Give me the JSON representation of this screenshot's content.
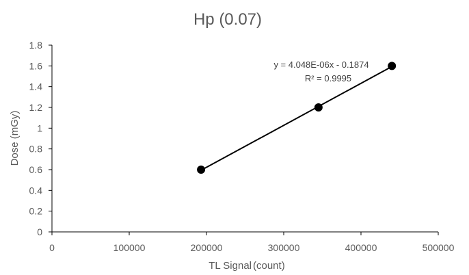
{
  "chart_data": {
    "type": "scatter",
    "title": "Hp (0.07)",
    "xlabel": "TL Signal",
    "xlabel_unit": "(count)",
    "ylabel": "Dose (mGy)",
    "xlim": [
      0,
      500000
    ],
    "ylim": [
      0,
      1.8
    ],
    "x_ticks": [
      "0",
      "100000",
      "200000",
      "300000",
      "400000",
      "500000"
    ],
    "y_ticks": [
      "0",
      "0.2",
      "0.4",
      "0.6",
      "0.8",
      "1",
      "1.2",
      "1.4",
      "1.6",
      "1.8"
    ],
    "grid": false,
    "series": [
      {
        "points": [
          {
            "x": 193000,
            "y": 0.6
          },
          {
            "x": 345000,
            "y": 1.2
          },
          {
            "x": 440000,
            "y": 1.6
          }
        ]
      }
    ],
    "trendline": {
      "type": "linear",
      "equation": "y = 4.048E-06x - 0.1874",
      "r_squared": "R² = 0.9995",
      "x_range": [
        193000,
        440000
      ]
    },
    "colors": {
      "marker": "#000000",
      "line": "#000000",
      "axis": "#000000",
      "text": "#595959"
    }
  }
}
